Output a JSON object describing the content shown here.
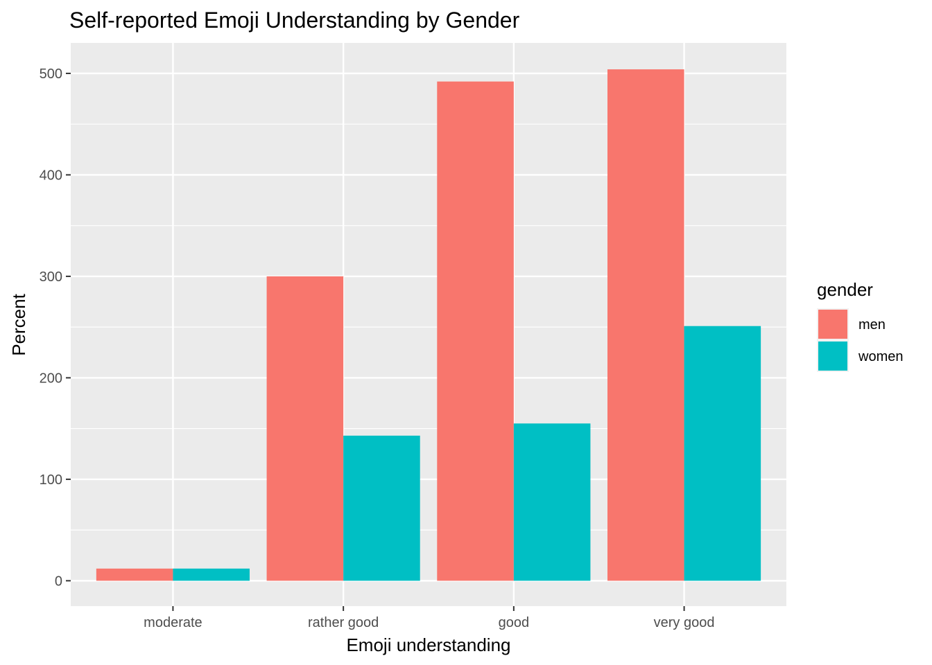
{
  "chart_data": {
    "type": "bar",
    "title": "Self-reported Emoji Understanding by Gender",
    "xlabel": "Emoji understanding",
    "ylabel": "Percent",
    "categories": [
      "moderate",
      "rather good",
      "good",
      "very good"
    ],
    "series": [
      {
        "name": "men",
        "color": "#f8766d",
        "values": [
          12,
          300,
          492,
          504
        ]
      },
      {
        "name": "women",
        "color": "#00bfc4",
        "values": [
          12,
          143,
          155,
          251
        ]
      }
    ],
    "yticks": [
      0,
      100,
      200,
      300,
      400,
      500
    ],
    "ylim": [
      -25,
      530
    ],
    "grid": true,
    "legend": {
      "title": "gender",
      "placement": "right"
    }
  }
}
